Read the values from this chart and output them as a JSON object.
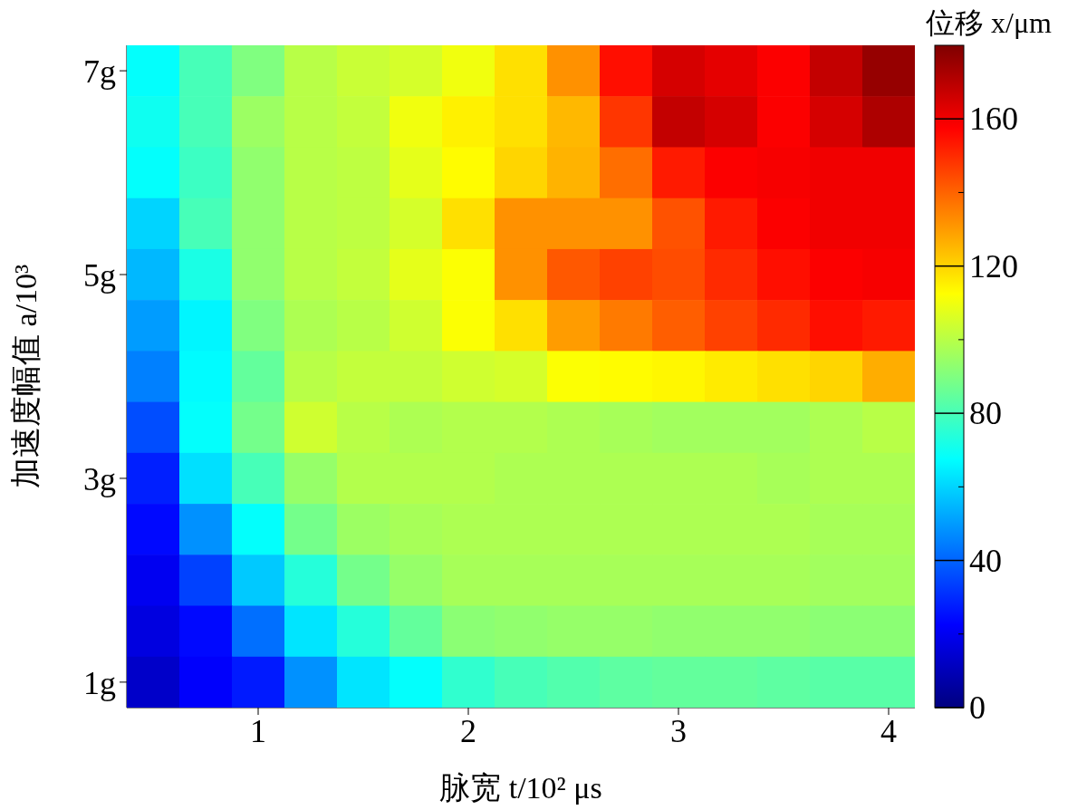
{
  "chart_data": {
    "type": "heatmap",
    "xlabel": "脉宽 t/10² μs",
    "ylabel": "加速度幅值 a/10³",
    "clabel": "位移 x/μm",
    "categories": [
      null,
      null,
      "1",
      null,
      null,
      null,
      "2",
      null,
      null,
      null,
      "3",
      null,
      null,
      null,
      "4"
    ],
    "y_categories": [
      "7g",
      null,
      null,
      null,
      "5g",
      null,
      null,
      null,
      "3g",
      null,
      null,
      null,
      "1g"
    ],
    "cells": [
      [
        68,
        80,
        90,
        100,
        103,
        105,
        110,
        118,
        132,
        155,
        165,
        162,
        158,
        168,
        176
      ],
      [
        70,
        80,
        95,
        100,
        102,
        110,
        115,
        118,
        125,
        148,
        168,
        165,
        158,
        165,
        172
      ],
      [
        68,
        78,
        93,
        100,
        101,
        108,
        113,
        120,
        126,
        138,
        153,
        158,
        159,
        160,
        160
      ],
      [
        60,
        80,
        93,
        100,
        101,
        105,
        118,
        132,
        132,
        132,
        143,
        153,
        158,
        160,
        160
      ],
      [
        55,
        72,
        93,
        100,
        102,
        108,
        112,
        132,
        142,
        146,
        144,
        150,
        155,
        158,
        159
      ],
      [
        50,
        66,
        90,
        98,
        100,
        104,
        112,
        118,
        130,
        136,
        141,
        146,
        150,
        155,
        153
      ],
      [
        45,
        67,
        85,
        100,
        102,
        102,
        104,
        105,
        112,
        113,
        114,
        116,
        118,
        120,
        127
      ],
      [
        36,
        68,
        88,
        104,
        100,
        98,
        99,
        99,
        98,
        97,
        96,
        96,
        96,
        98,
        100
      ],
      [
        28,
        62,
        80,
        94,
        99,
        99,
        99,
        98,
        98,
        98,
        98,
        98,
        97,
        98,
        98
      ],
      [
        24,
        48,
        68,
        88,
        95,
        97,
        98,
        98,
        98,
        98,
        98,
        98,
        98,
        97,
        97
      ],
      [
        20,
        34,
        58,
        74,
        88,
        94,
        97,
        97,
        97,
        97,
        97,
        97,
        97,
        96,
        96
      ],
      [
        17,
        24,
        42,
        63,
        74,
        85,
        92,
        93,
        94,
        94,
        93,
        93,
        93,
        92,
        92
      ],
      [
        13,
        22,
        27,
        48,
        63,
        68,
        76,
        80,
        82,
        84,
        85,
        85,
        84,
        83,
        83
      ]
    ],
    "clim": [
      0,
      180
    ],
    "cticks": [
      0,
      {
        "value": 20,
        "label": null
      },
      40,
      {
        "value": 60,
        "label": null
      },
      80,
      {
        "value": 100,
        "label": null
      },
      120,
      {
        "value": 140,
        "label": null
      },
      160
    ]
  }
}
